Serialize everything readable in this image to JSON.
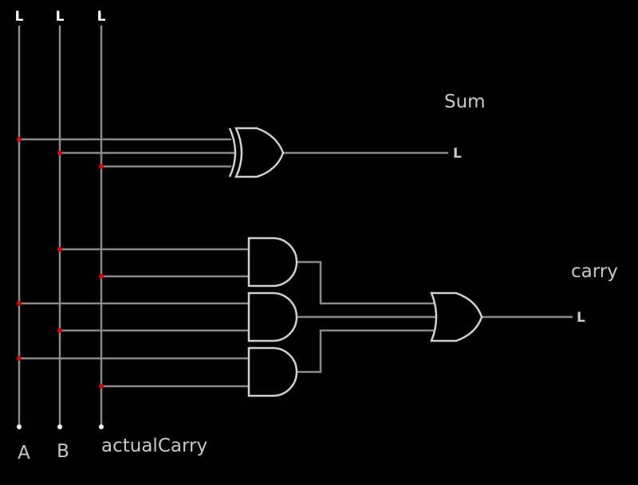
{
  "inputs": {
    "a": {
      "name": "A",
      "state": "L"
    },
    "b": {
      "name": "B",
      "state": "L"
    },
    "c": {
      "name": "actualCarry",
      "state": "L"
    }
  },
  "outputs": {
    "sum": {
      "name": "Sum",
      "state": "L"
    },
    "carry": {
      "name": "carry",
      "state": "L"
    }
  },
  "gates": {
    "xor": "XOR",
    "and1": "AND",
    "and2": "AND",
    "and3": "AND",
    "or": "OR"
  },
  "colors": {
    "background": "#000000",
    "wire": "#8a8a8a",
    "gate": "#d0d0d0",
    "junction": "#e00000",
    "text": "#c8c8c8"
  }
}
